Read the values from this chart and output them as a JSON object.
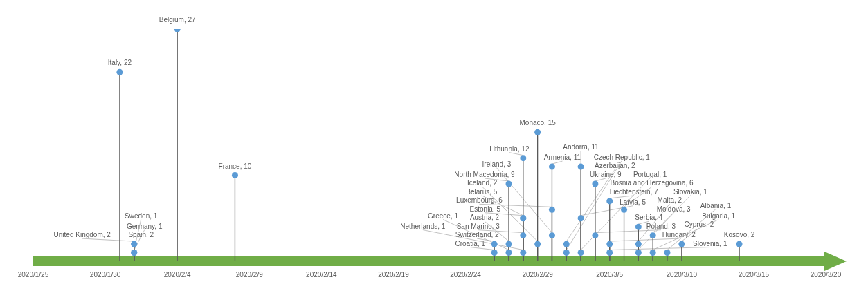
{
  "chart_data": {
    "type": "lollipop",
    "x": [
      "2020-01-31",
      "2020-02-01",
      "2020-02-01",
      "2020-02-01",
      "2020-02-01",
      "2020-02-04",
      "2020-02-08",
      "2020-02-26",
      "2020-02-26",
      "2020-02-27",
      "2020-02-27",
      "2020-02-27",
      "2020-02-28",
      "2020-02-28",
      "2020-02-28",
      "2020-02-28",
      "2020-02-28",
      "2020-02-29",
      "2020-02-29",
      "2020-03-01",
      "2020-03-01",
      "2020-03-01",
      "2020-03-02",
      "2020-03-02",
      "2020-03-03",
      "2020-03-03",
      "2020-03-03",
      "2020-03-04",
      "2020-03-04",
      "2020-03-05",
      "2020-03-05",
      "2020-03-05",
      "2020-03-06",
      "2020-03-07",
      "2020-03-07",
      "2020-03-07",
      "2020-03-08",
      "2020-03-08",
      "2020-03-09",
      "2020-03-10",
      "2020-03-14"
    ],
    "values": [
      22,
      2,
      2,
      1,
      1,
      27,
      10,
      2,
      1,
      9,
      2,
      1,
      12,
      5,
      5,
      3,
      1,
      15,
      2,
      11,
      6,
      3,
      2,
      1,
      11,
      5,
      1,
      9,
      3,
      7,
      2,
      1,
      6,
      4,
      2,
      1,
      3,
      1,
      1,
      2,
      2
    ],
    "value_labels": [
      "Italy, 22",
      "United Kingdom, 2",
      "Spain, 2",
      "Germany, 1",
      "Sweden, 1",
      "Belgium, 27",
      "France, 10",
      "Switzerland, 2",
      "Croatia, 1",
      "North Macedonia, 9",
      "Austria, 2",
      "Greece, 1",
      "Lithuania, 12",
      "Estonia, 5",
      "Belarus, 5",
      "San Marino, 3",
      "Netherlands, 1",
      "Monaco, 15",
      "Iceland, 2",
      "Armenia, 11",
      "Luxembourg, 6",
      "Ireland, 3",
      "Azerbaijan, 2",
      "Czech Republic, 1",
      "Andorra, 11",
      "Latvia, 5",
      "Portugal, 1",
      "Ukraine, 9",
      "Poland, 3",
      "Liechtenstein, 7",
      "Hungary, 2",
      "Slovenia, 1",
      "Bosnia and Herzegovina, 6",
      "Serbia, 4",
      "Malta, 2",
      "Slovakia, 1",
      "Moldova, 3",
      "Bulgaria, 1",
      "Albania, 1",
      "Cyprus, 2",
      "Kosovo, 2"
    ],
    "color": "#5b9bd5",
    "marker": "circle",
    "xlim": [
      "2020-01-25",
      "2020-03-20"
    ],
    "xticks": [
      {
        "value": "2020-01-25",
        "label": "2020/1/25"
      },
      {
        "value": "2020-01-30",
        "label": "2020/1/30"
      },
      {
        "value": "2020-02-04",
        "label": "2020/2/4"
      },
      {
        "value": "2020-02-09",
        "label": "2020/2/9"
      },
      {
        "value": "2020-02-14",
        "label": "2020/2/14"
      },
      {
        "value": "2020-02-19",
        "label": "2020/2/19"
      },
      {
        "value": "2020-02-24",
        "label": "2020/2/24"
      },
      {
        "value": "2020-02-29",
        "label": "2020/2/29"
      },
      {
        "value": "2020-03-05",
        "label": "2020/3/5"
      },
      {
        "value": "2020-03-10",
        "label": "2020/3/10"
      },
      {
        "value": "2020-03-15",
        "label": "2020/3/15"
      },
      {
        "value": "2020-03-20",
        "label": "2020/3/20"
      }
    ]
  }
}
